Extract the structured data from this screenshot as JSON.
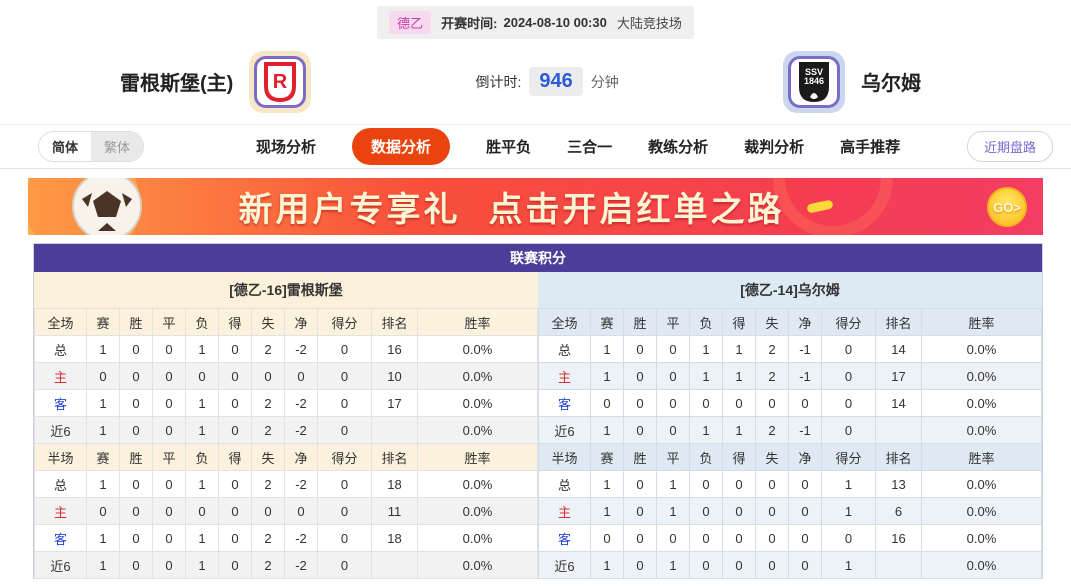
{
  "colors": {
    "title_purple": "#4b3d99",
    "active_tab_orange": "#ea430e",
    "home_label_red": "#d43030",
    "away_label_blue": "#2646d4",
    "countdown_blue": "#2b5bd7",
    "league_tag_magenta": "#c23fa8",
    "left_header_cream": "#fbf0d9",
    "right_header_blue": "#dde9f3"
  },
  "top_bar": {
    "league_tag": "德乙",
    "kickoff_label": "开赛时间:",
    "kickoff_time": "2024-08-10 00:30",
    "venue": "大陆竞技场"
  },
  "header": {
    "home_team": "雷根斯堡(主)",
    "away_team": "乌尔姆",
    "home_logo_letter": "R",
    "away_logo_line1": "SSV",
    "away_logo_line2": "1846",
    "countdown_label": "倒计时:",
    "countdown_value": "946",
    "countdown_unit": "分钟"
  },
  "nav": {
    "lang_simplified": "简体",
    "lang_traditional": "繁体",
    "tabs": [
      {
        "id": "live-analysis",
        "label": "现场分析",
        "active": false
      },
      {
        "id": "data-analysis",
        "label": "数据分析",
        "active": true
      },
      {
        "id": "win-draw-lose",
        "label": "胜平负",
        "active": false
      },
      {
        "id": "three-in-one",
        "label": "三合一",
        "active": false
      },
      {
        "id": "coach-analysis",
        "label": "教练分析",
        "active": false
      },
      {
        "id": "referee-analysis",
        "label": "裁判分析",
        "active": false
      },
      {
        "id": "expert-picks",
        "label": "高手推荐",
        "active": false
      }
    ],
    "recent_button": "近期盘路"
  },
  "banner": {
    "text_part1": "新用户专享礼",
    "text_part2": "点击开启红单之路",
    "go_label": "GO>"
  },
  "league_table": {
    "title": "联赛积分",
    "left": {
      "team_header": "[德乙-16]雷根斯堡",
      "sections": [
        {
          "header": [
            "全场",
            "赛",
            "胜",
            "平",
            "负",
            "得",
            "失",
            "净",
            "得分",
            "排名",
            "胜率"
          ],
          "rows": [
            {
              "label": "总",
              "type": "total",
              "cells": [
                "1",
                "0",
                "0",
                "1",
                "0",
                "2",
                "-2",
                "0",
                "16",
                "0.0%"
              ]
            },
            {
              "label": "主",
              "type": "home",
              "cells": [
                "0",
                "0",
                "0",
                "0",
                "0",
                "0",
                "0",
                "0",
                "10",
                "0.0%"
              ]
            },
            {
              "label": "客",
              "type": "away",
              "cells": [
                "1",
                "0",
                "0",
                "1",
                "0",
                "2",
                "-2",
                "0",
                "17",
                "0.0%"
              ]
            },
            {
              "label": "近6",
              "type": "near6",
              "cells": [
                "1",
                "0",
                "0",
                "1",
                "0",
                "2",
                "-2",
                "0",
                "",
                "0.0%"
              ]
            }
          ]
        },
        {
          "header": [
            "半场",
            "赛",
            "胜",
            "平",
            "负",
            "得",
            "失",
            "净",
            "得分",
            "排名",
            "胜率"
          ],
          "rows": [
            {
              "label": "总",
              "type": "total",
              "cells": [
                "1",
                "0",
                "0",
                "1",
                "0",
                "2",
                "-2",
                "0",
                "18",
                "0.0%"
              ]
            },
            {
              "label": "主",
              "type": "home",
              "cells": [
                "0",
                "0",
                "0",
                "0",
                "0",
                "0",
                "0",
                "0",
                "11",
                "0.0%"
              ]
            },
            {
              "label": "客",
              "type": "away",
              "cells": [
                "1",
                "0",
                "0",
                "1",
                "0",
                "2",
                "-2",
                "0",
                "18",
                "0.0%"
              ]
            },
            {
              "label": "近6",
              "type": "near6",
              "cells": [
                "1",
                "0",
                "0",
                "1",
                "0",
                "2",
                "-2",
                "0",
                "",
                "0.0%"
              ]
            }
          ]
        }
      ]
    },
    "right": {
      "team_header": "[德乙-14]乌尔姆",
      "sections": [
        {
          "header": [
            "全场",
            "赛",
            "胜",
            "平",
            "负",
            "得",
            "失",
            "净",
            "得分",
            "排名",
            "胜率"
          ],
          "rows": [
            {
              "label": "总",
              "type": "total",
              "cells": [
                "1",
                "0",
                "0",
                "1",
                "1",
                "2",
                "-1",
                "0",
                "14",
                "0.0%"
              ]
            },
            {
              "label": "主",
              "type": "home",
              "cells": [
                "1",
                "0",
                "0",
                "1",
                "1",
                "2",
                "-1",
                "0",
                "17",
                "0.0%"
              ]
            },
            {
              "label": "客",
              "type": "away",
              "cells": [
                "0",
                "0",
                "0",
                "0",
                "0",
                "0",
                "0",
                "0",
                "14",
                "0.0%"
              ]
            },
            {
              "label": "近6",
              "type": "near6",
              "cells": [
                "1",
                "0",
                "0",
                "1",
                "1",
                "2",
                "-1",
                "0",
                "",
                "0.0%"
              ]
            }
          ]
        },
        {
          "header": [
            "半场",
            "赛",
            "胜",
            "平",
            "负",
            "得",
            "失",
            "净",
            "得分",
            "排名",
            "胜率"
          ],
          "rows": [
            {
              "label": "总",
              "type": "total",
              "cells": [
                "1",
                "0",
                "1",
                "0",
                "0",
                "0",
                "0",
                "1",
                "13",
                "0.0%"
              ]
            },
            {
              "label": "主",
              "type": "home",
              "cells": [
                "1",
                "0",
                "1",
                "0",
                "0",
                "0",
                "0",
                "1",
                "6",
                "0.0%"
              ]
            },
            {
              "label": "客",
              "type": "away",
              "cells": [
                "0",
                "0",
                "0",
                "0",
                "0",
                "0",
                "0",
                "0",
                "16",
                "0.0%"
              ]
            },
            {
              "label": "近6",
              "type": "near6",
              "cells": [
                "1",
                "0",
                "1",
                "0",
                "0",
                "0",
                "0",
                "1",
                "",
                "0.0%"
              ]
            }
          ]
        }
      ]
    }
  }
}
